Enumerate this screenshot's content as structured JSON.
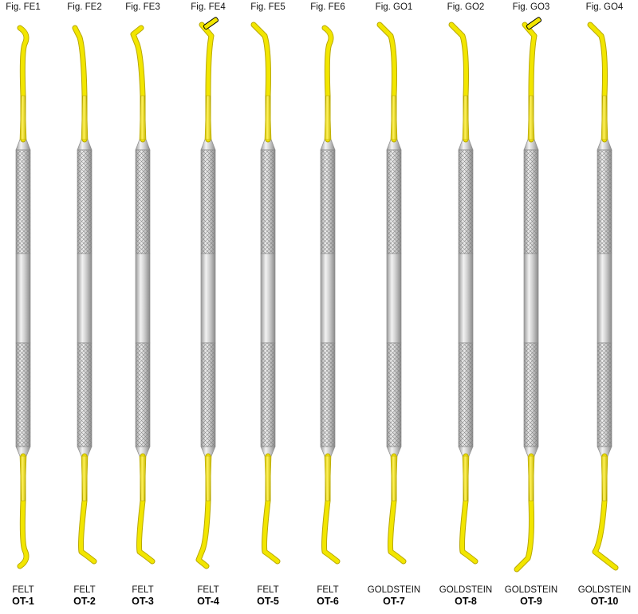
{
  "instruments": [
    {
      "fig": "Fig. FE1",
      "category": "FELT",
      "code": "OT-1",
      "top_tip": "hook-right",
      "bottom_tip": "hook-right"
    },
    {
      "fig": "Fig. FE2",
      "category": "FELT",
      "code": "OT-2",
      "top_tip": "fine-left",
      "bottom_tip": "curve-right"
    },
    {
      "fig": "Fig. FE3",
      "category": "FELT",
      "code": "OT-3",
      "top_tip": "hook-left",
      "bottom_tip": "curve-right"
    },
    {
      "fig": "Fig. FE4",
      "category": "FELT",
      "code": "OT-4",
      "top_tip": "blade-right",
      "bottom_tip": "hook-left"
    },
    {
      "fig": "Fig. FE5",
      "category": "FELT",
      "code": "OT-5",
      "top_tip": "paddle-left",
      "bottom_tip": "curve-right"
    },
    {
      "fig": "Fig. FE6",
      "category": "FELT",
      "code": "OT-6",
      "top_tip": "hook-right",
      "bottom_tip": "curve-right"
    },
    {
      "fig": "Fig. GO1",
      "category": "GOLDSTEIN",
      "code": "OT-7",
      "top_tip": "paddle-left",
      "bottom_tip": "curve-right"
    },
    {
      "fig": "Fig. GO2",
      "category": "GOLDSTEIN",
      "code": "OT-8",
      "top_tip": "paddle-left",
      "bottom_tip": "curve-right"
    },
    {
      "fig": "Fig. GO3",
      "category": "GOLDSTEIN",
      "code": "OT-9",
      "top_tip": "blade-right",
      "bottom_tip": "paddle-left"
    },
    {
      "fig": "Fig. GO4",
      "category": "GOLDSTEIN",
      "code": "OT-10",
      "top_tip": "paddle-left",
      "bottom_tip": "paddle-right"
    }
  ],
  "colors": {
    "tip_gold": "#f2e600",
    "tip_gold_dark": "#b8a800",
    "handle_steel": "#d6d6d6",
    "handle_dark": "#8c8c8c"
  }
}
